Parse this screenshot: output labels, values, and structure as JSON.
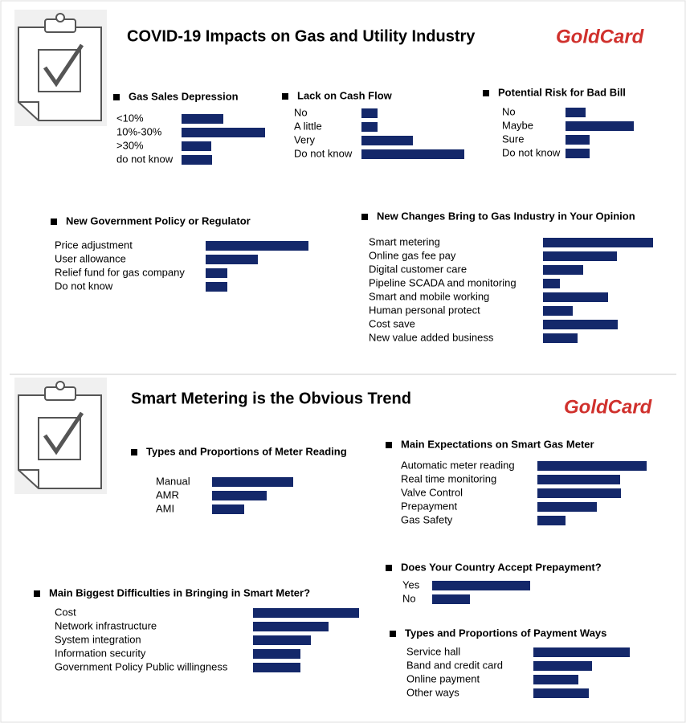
{
  "sections": [
    {
      "title": "COVID-19 Impacts on Gas and Utility Industry",
      "logo": "GoldCard"
    },
    {
      "title": "Smart Metering is the Obvious Trend",
      "logo": "GoldCard"
    }
  ],
  "chart_data": [
    {
      "type": "bar",
      "title": "Gas Sales Depression",
      "categories": [
        "<10%",
        "10%-30%",
        ">30%",
        "do not know"
      ],
      "values": [
        52,
        104,
        37,
        38
      ],
      "color": "#14286a"
    },
    {
      "type": "bar",
      "title": "Lack on Cash Flow",
      "categories": [
        "No",
        "A little",
        "Very",
        "Do not know"
      ],
      "values": [
        20,
        20,
        64,
        128
      ],
      "color": "#14286a"
    },
    {
      "type": "bar",
      "title": "Potential Risk for Bad Bill",
      "categories": [
        "No",
        "Maybe",
        "Sure",
        "Do not know"
      ],
      "values": [
        25,
        85,
        30,
        30
      ],
      "color": "#14286a"
    },
    {
      "type": "bar",
      "title": "New Government Policy or Regulator",
      "categories": [
        "Price adjustment",
        "User allowance",
        "Relief fund for gas company",
        "Do not know"
      ],
      "values": [
        128,
        65,
        27,
        27
      ],
      "color": "#14286a"
    },
    {
      "type": "bar",
      "title": "New Changes Bring to Gas Industry in Your Opinion",
      "categories": [
        "Smart metering",
        "Online gas fee pay",
        "Digital customer care",
        "Pipeline SCADA and monitoring",
        "Smart and mobile working",
        "Human personal protect",
        "Cost save",
        "New value added business"
      ],
      "values": [
        137,
        92,
        50,
        21,
        81,
        37,
        93,
        43
      ],
      "color": "#14286a"
    },
    {
      "type": "bar",
      "title": "Types and Proportions of Meter Reading",
      "categories": [
        "Manual",
        "AMR",
        "AMI"
      ],
      "values": [
        101,
        68,
        40
      ],
      "color": "#14286a"
    },
    {
      "type": "bar",
      "title": "Main Expectations on Smart Gas Meter",
      "categories": [
        "Automatic meter reading",
        "Real time monitoring",
        "Valve Control",
        "Prepayment",
        "Gas Safety"
      ],
      "values": [
        136,
        103,
        104,
        74,
        35
      ],
      "color": "#14286a"
    },
    {
      "type": "bar",
      "title": "Does Your Country Accept Prepayment?",
      "categories": [
        "Yes",
        "No"
      ],
      "values": [
        122,
        47
      ],
      "color": "#14286a"
    },
    {
      "type": "bar",
      "title": "Main Biggest Difficulties in Bringing in Smart Meter?",
      "categories": [
        "Cost",
        "Network infrastructure",
        "System integration",
        "Information security",
        "Government Policy Public willingness"
      ],
      "values": [
        132,
        94,
        72,
        59,
        59
      ],
      "color": "#14286a"
    },
    {
      "type": "bar",
      "title": "Types and Proportions of Payment Ways",
      "categories": [
        "Service hall",
        "Band and credit card",
        "Online payment",
        "Other ways"
      ],
      "values": [
        120,
        73,
        56,
        69
      ],
      "color": "#14286a"
    }
  ]
}
